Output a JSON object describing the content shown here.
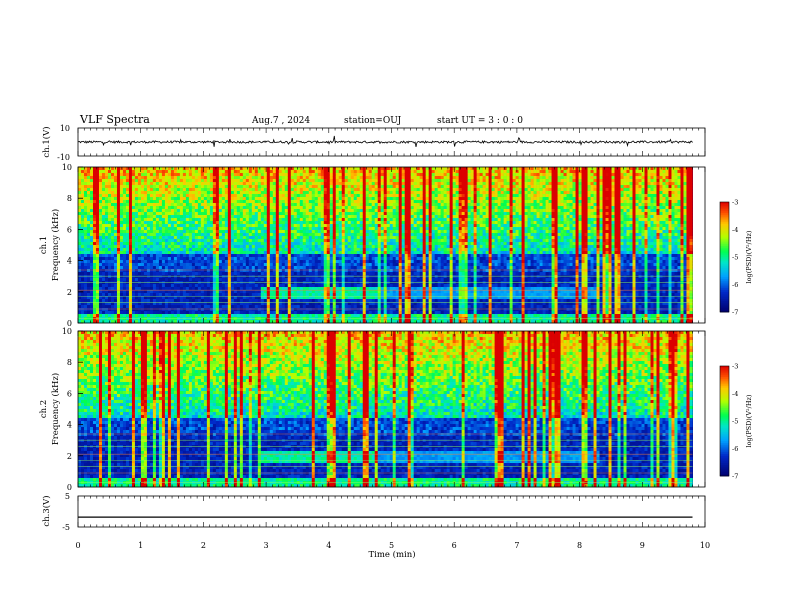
{
  "header": {
    "title": "VLF Spectra",
    "date": "Aug.7 , 2024",
    "station": "station=OUJ",
    "start": "start UT = 3 : 0 : 0"
  },
  "colors": {
    "spec_low": "#00007a",
    "spec_mid": "#00ff7f",
    "spec_high": "#ff0000",
    "waveform": "#000000"
  },
  "chart_data": [
    {
      "type": "line",
      "name": "ch1-waveform",
      "ylabel": "ch.1(V)",
      "ylim": [
        -10,
        10
      ],
      "y_ticks": [
        "10",
        "-10"
      ],
      "xlim": [
        0,
        9.8
      ],
      "x": [
        0,
        0.5,
        1,
        1.5,
        2,
        2.5,
        3,
        3.5,
        4,
        4.5,
        5,
        5.5,
        6,
        6.5,
        7,
        7.5,
        8,
        8.5,
        9,
        9.5,
        9.8
      ],
      "y": [
        0,
        0.3,
        -0.2,
        0.1,
        0.2,
        -0.1,
        0.3,
        0.2,
        0,
        0.4,
        -0.2,
        0.1,
        0.2,
        -0.1,
        0.3,
        0.2,
        0,
        0.1,
        0.2,
        -0.1,
        0
      ]
    },
    {
      "type": "heatmap",
      "name": "ch1-spectrogram",
      "ylabel": "ch.1\nFrequency (kHz)",
      "ylim": [
        0,
        10
      ],
      "y_ticks": [
        "0",
        "2",
        "4",
        "6",
        "8",
        "10"
      ],
      "xlim": [
        0,
        9.8
      ],
      "colorbar": {
        "label": "log(PSD)(V²/Hz)",
        "range": [
          -7,
          -3
        ],
        "ticks": [
          "-3",
          "-4",
          "-5",
          "-6",
          "-7"
        ]
      },
      "features": {
        "hiss_band_khz": [
          1.6,
          2.3
        ],
        "hiss_band_time_min": [
          2.9,
          4.8
        ],
        "lower_band_time_min": [
          4.8,
          8.3
        ],
        "noise_floor_khz": 4.5
      }
    },
    {
      "type": "heatmap",
      "name": "ch2-spectrogram",
      "ylabel": "ch.2\nFrequency (kHz)",
      "ylim": [
        0,
        10
      ],
      "y_ticks": [
        "0",
        "2",
        "4",
        "6",
        "8",
        "10"
      ],
      "xlim": [
        0,
        9.8
      ],
      "colorbar": {
        "label": "log(PSD)(V²/Hz)",
        "range": [
          -7,
          -3
        ],
        "ticks": [
          "-3",
          "-4",
          "-5",
          "-6",
          "-7"
        ]
      },
      "features": {
        "hiss_band_khz": [
          1.6,
          2.4
        ],
        "hiss_band_time_min": [
          2.9,
          4.8
        ],
        "lower_band_time_min": [
          4.8,
          8.3
        ],
        "noise_floor_khz": 4.5
      }
    },
    {
      "type": "line",
      "name": "ch3-waveform",
      "ylabel": "ch.3(V)",
      "ylim": [
        -5,
        5
      ],
      "y_ticks": [
        "5",
        "-5"
      ],
      "xlim": [
        0,
        9.8
      ],
      "x": [
        0,
        9.8
      ],
      "y": [
        -1.8,
        -1.8
      ]
    }
  ],
  "x_axis": {
    "label": "Time (min)",
    "ticks": [
      "0",
      "1",
      "2",
      "3",
      "4",
      "5",
      "6",
      "7",
      "8",
      "9",
      "10"
    ],
    "range": [
      0,
      10
    ]
  }
}
